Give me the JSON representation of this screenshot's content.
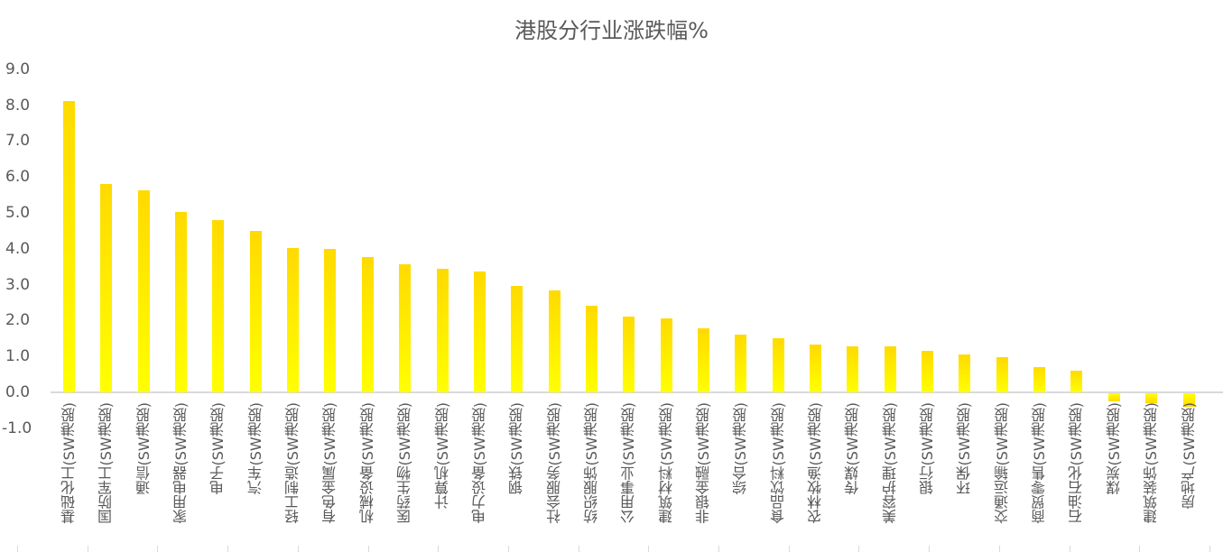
{
  "chart_data": {
    "type": "bar",
    "title": "港股分行业涨跌幅%",
    "xlabel": "",
    "ylabel": "",
    "ylim": [
      -1.0,
      9.0
    ],
    "yticks": [
      "9.0",
      "8.0",
      "7.0",
      "6.0",
      "5.0",
      "4.0",
      "3.0",
      "2.0",
      "1.0",
      "0.0",
      "-1.0"
    ],
    "grid": false,
    "legend": null,
    "bar_color_top": "#FFDA00",
    "bar_color_bottom": "#FFFF00",
    "categories": [
      "基础化工(SW港股)",
      "国防军工(SW港股)",
      "通信(SW港股)",
      "家用电器(SW港股)",
      "电子(SW港股)",
      "汽车(SW港股)",
      "轻工制造(SW港股)",
      "有色金属(SW港股)",
      "机械设备(SW港股)",
      "医药生物(SW港股)",
      "计算机(SW港股)",
      "电力设备(SW港股)",
      "钢铁(SW港股)",
      "社会服务(SW港股)",
      "纺织服饰(SW港股)",
      "公用事业(SW港股)",
      "建筑材料(SW港股)",
      "非银金融(SW港股)",
      "综合(SW港股)",
      "食品饮料(SW港股)",
      "农林牧渔(SW港股)",
      "传媒(SW港股)",
      "美容护理(SW港股)",
      "银行(SW港股)",
      "环保(SW港股)",
      "交通运输(SW港股)",
      "商贸零售(SW港股)",
      "石油石化(SW港股)",
      "煤炭(SW港股)",
      "建筑装饰(SW港股)",
      "房地产(SW港股)"
    ],
    "values": [
      8.12,
      5.8,
      5.63,
      5.03,
      4.8,
      4.5,
      4.02,
      3.99,
      3.77,
      3.57,
      3.44,
      3.37,
      2.96,
      2.84,
      2.41,
      2.11,
      2.06,
      1.78,
      1.61,
      1.51,
      1.33,
      1.28,
      1.28,
      1.16,
      1.06,
      0.98,
      0.7,
      0.6,
      -0.22,
      -0.28,
      -0.38
    ]
  }
}
